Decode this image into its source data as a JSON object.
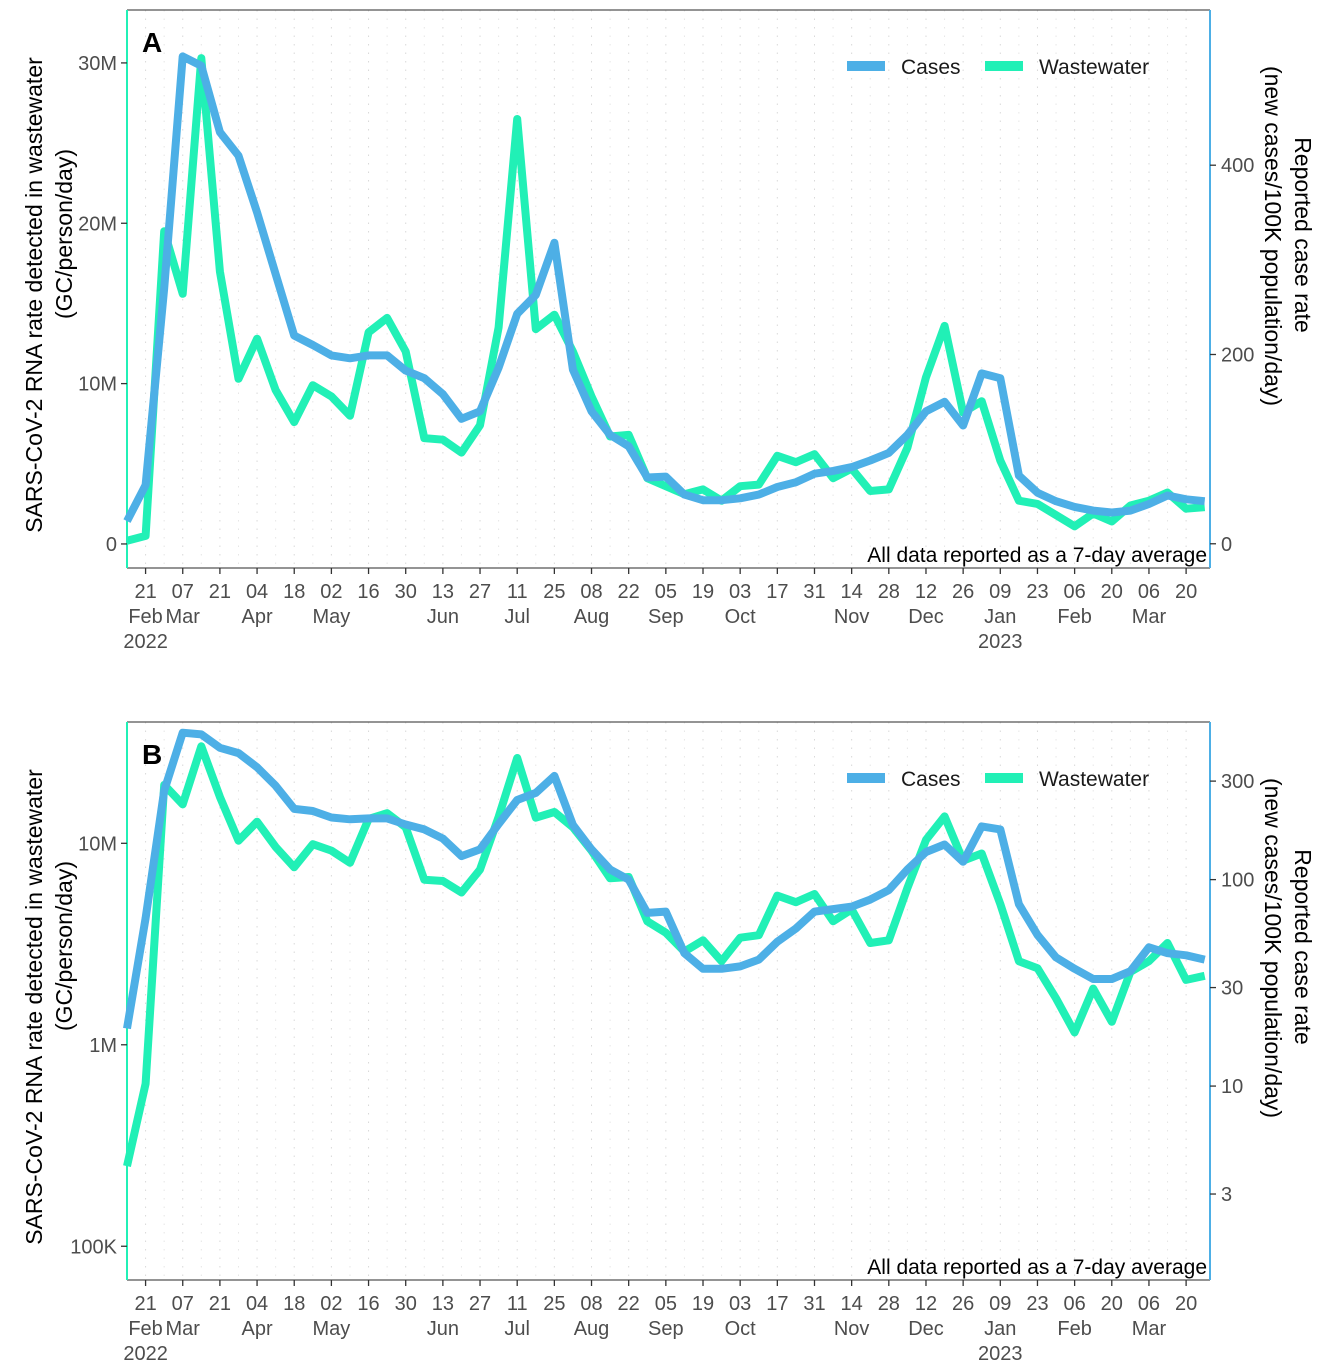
{
  "chart_data": [
    {
      "type": "line",
      "panel_label": "A",
      "scale": "linear",
      "x": [
        "2022-02-14",
        "2022-02-21",
        "2022-02-28",
        "2022-03-07",
        "2022-03-14",
        "2022-03-21",
        "2022-03-28",
        "2022-04-04",
        "2022-04-11",
        "2022-04-18",
        "2022-04-25",
        "2022-05-02",
        "2022-05-09",
        "2022-05-16",
        "2022-05-23",
        "2022-05-30",
        "2022-06-06",
        "2022-06-13",
        "2022-06-20",
        "2022-06-27",
        "2022-07-04",
        "2022-07-11",
        "2022-07-18",
        "2022-07-25",
        "2022-08-01",
        "2022-08-08",
        "2022-08-15",
        "2022-08-22",
        "2022-08-29",
        "2022-09-05",
        "2022-09-12",
        "2022-09-19",
        "2022-09-26",
        "2022-10-03",
        "2022-10-10",
        "2022-10-17",
        "2022-10-24",
        "2022-10-31",
        "2022-11-07",
        "2022-11-14",
        "2022-11-21",
        "2022-11-28",
        "2022-12-05",
        "2022-12-12",
        "2022-12-19",
        "2022-12-26",
        "2023-01-02",
        "2023-01-09",
        "2023-01-16",
        "2023-01-23",
        "2023-01-30",
        "2023-02-06",
        "2023-02-13",
        "2023-02-20",
        "2023-02-27",
        "2023-03-06",
        "2023-03-13",
        "2023-03-20",
        "2023-03-27"
      ],
      "series": [
        {
          "name": "Wastewater",
          "axis": "left",
          "color": "#21F0B6",
          "values": [
            200000,
            500000,
            19500000,
            15600000,
            30300000,
            17000000,
            10300000,
            12800000,
            9600000,
            7600000,
            9900000,
            9200000,
            8000000,
            13200000,
            14100000,
            12000000,
            6600000,
            6500000,
            5700000,
            7400000,
            13500000,
            26500000,
            13400000,
            14300000,
            12000000,
            9200000,
            6700000,
            6800000,
            4100000,
            3600000,
            3100000,
            3400000,
            2700000,
            3600000,
            3700000,
            5500000,
            5100000,
            5600000,
            4100000,
            4700000,
            3300000,
            3400000,
            6000000,
            10400000,
            13600000,
            8200000,
            8900000,
            5200000,
            2700000,
            2500000,
            1800000,
            1100000,
            1900000,
            1400000,
            2400000,
            2700000,
            3200000,
            2200000,
            2300000
          ]
        },
        {
          "name": "Cases",
          "axis": "right",
          "color": "#4DAFE6",
          "values": [
            24,
            62,
            270,
            515,
            505,
            435,
            410,
            350,
            285,
            220,
            210,
            199,
            196,
            199,
            199,
            183,
            175,
            158,
            132,
            140,
            186,
            243,
            263,
            318,
            184,
            140,
            115,
            103,
            70,
            71,
            52,
            46,
            46,
            48,
            52,
            60,
            65,
            74,
            77,
            81,
            88,
            96,
            115,
            140,
            150,
            125,
            180,
            175,
            72,
            54,
            45,
            39,
            35,
            33,
            35,
            42,
            51,
            47,
            45
          ]
        }
      ],
      "left_axis": {
        "label_line1": "SARS-CoV-2 RNA rate detected in wastewater",
        "label_line2": "(GC/person/day)",
        "ticks": [
          0,
          10000000,
          20000000,
          30000000
        ],
        "tick_labels": [
          "0",
          "10M",
          "20M",
          "30M"
        ],
        "range": [
          -1500000,
          33300000
        ],
        "color": "#21F0B6"
      },
      "right_axis": {
        "label_line1": "Reported case rate",
        "label_line2": "(new cases/100K population/day)",
        "ticks": [
          0,
          200,
          400
        ],
        "tick_labels": [
          "0",
          "200",
          "400"
        ],
        "range": [
          -25.6,
          564
        ],
        "color": "#4DAFE6"
      },
      "legend": [
        "Cases",
        "Wastewater"
      ],
      "annotation": "All data reported as a 7-day average"
    },
    {
      "type": "line",
      "panel_label": "B",
      "scale": "log",
      "x": [
        "2022-02-14",
        "2022-02-21",
        "2022-02-28",
        "2022-03-07",
        "2022-03-14",
        "2022-03-21",
        "2022-03-28",
        "2022-04-04",
        "2022-04-11",
        "2022-04-18",
        "2022-04-25",
        "2022-05-02",
        "2022-05-09",
        "2022-05-16",
        "2022-05-23",
        "2022-05-30",
        "2022-06-06",
        "2022-06-13",
        "2022-06-20",
        "2022-06-27",
        "2022-07-04",
        "2022-07-11",
        "2022-07-18",
        "2022-07-25",
        "2022-08-01",
        "2022-08-08",
        "2022-08-15",
        "2022-08-22",
        "2022-08-29",
        "2022-09-05",
        "2022-09-12",
        "2022-09-19",
        "2022-09-26",
        "2022-10-03",
        "2022-10-10",
        "2022-10-17",
        "2022-10-24",
        "2022-10-31",
        "2022-11-07",
        "2022-11-14",
        "2022-11-21",
        "2022-11-28",
        "2022-12-05",
        "2022-12-12",
        "2022-12-19",
        "2022-12-26",
        "2023-01-02",
        "2023-01-09",
        "2023-01-16",
        "2023-01-23",
        "2023-01-30",
        "2023-02-06",
        "2023-02-13",
        "2023-02-20",
        "2023-02-27",
        "2023-03-06",
        "2023-03-13",
        "2023-03-20",
        "2023-03-27"
      ],
      "series": [
        {
          "name": "Wastewater",
          "axis": "left",
          "color": "#21F0B6",
          "values": [
            250000,
            640000,
            19500000,
            15600000,
            30300000,
            17000000,
            10300000,
            12800000,
            9600000,
            7600000,
            9900000,
            9200000,
            8000000,
            13200000,
            14100000,
            12000000,
            6600000,
            6500000,
            5700000,
            7400000,
            13500000,
            26500000,
            13400000,
            14300000,
            12000000,
            9200000,
            6700000,
            6800000,
            4100000,
            3600000,
            2900000,
            3300000,
            2600000,
            3400000,
            3500000,
            5500000,
            5100000,
            5600000,
            4100000,
            4700000,
            3200000,
            3300000,
            6000000,
            10400000,
            13600000,
            8200000,
            8900000,
            5000000,
            2600000,
            2400000,
            1700000,
            1150000,
            1900000,
            1300000,
            2300000,
            2600000,
            3200000,
            2100000,
            2200000
          ]
        },
        {
          "name": "Cases",
          "axis": "right",
          "color": "#4DAFE6",
          "values": [
            19,
            65,
            270,
            515,
            505,
            435,
            410,
            350,
            285,
            220,
            215,
            200,
            196,
            198,
            198,
            185,
            175,
            158,
            130,
            140,
            186,
            243,
            263,
            318,
            184,
            140,
            112,
            100,
            69,
            70,
            44,
            37,
            37,
            38,
            41,
            50,
            58,
            70,
            72,
            74,
            80,
            89,
            112,
            136,
            148,
            122,
            181,
            175,
            76,
            54,
            42,
            37,
            33,
            33,
            36,
            47,
            44,
            43,
            41
          ]
        }
      ],
      "left_axis": {
        "label_line1": "SARS-CoV-2 RNA rate detected in wastewater",
        "label_line2": "(GC/person/day)",
        "ticks": [
          100000,
          1000000,
          10000000
        ],
        "tick_labels": [
          "100K",
          "1M",
          "10M"
        ],
        "range": [
          68000,
          40000000
        ],
        "color": "#21F0B6"
      },
      "right_axis": {
        "label_line1": "Reported case rate",
        "label_line2": "(new cases/100K population/day)",
        "ticks": [
          3,
          10,
          30,
          100,
          300
        ],
        "tick_labels": [
          "3",
          "10",
          "30",
          "100",
          "300"
        ],
        "range": [
          1.15,
          580
        ],
        "color": "#4DAFE6"
      },
      "legend": [
        "Cases",
        "Wastewater"
      ],
      "annotation": "All data reported as a 7-day average"
    }
  ],
  "x_axis": {
    "range": [
      "2022-02-14",
      "2023-03-29"
    ],
    "ticks": [
      "2022-02-21",
      "2022-03-07",
      "2022-03-21",
      "2022-04-04",
      "2022-04-18",
      "2022-05-02",
      "2022-05-16",
      "2022-05-30",
      "2022-06-13",
      "2022-06-27",
      "2022-07-11",
      "2022-07-25",
      "2022-08-08",
      "2022-08-22",
      "2022-09-05",
      "2022-09-19",
      "2022-10-03",
      "2022-10-17",
      "2022-10-31",
      "2022-11-14",
      "2022-11-28",
      "2022-12-12",
      "2022-12-26",
      "2023-01-09",
      "2023-01-23",
      "2023-02-06",
      "2023-02-20",
      "2023-03-06",
      "2023-03-20"
    ],
    "tick_labels": [
      "21",
      "07",
      "21",
      "04",
      "18",
      "02",
      "16",
      "30",
      "13",
      "27",
      "11",
      "25",
      "08",
      "22",
      "05",
      "19",
      "03",
      "17",
      "31",
      "14",
      "28",
      "12",
      "26",
      "09",
      "23",
      "06",
      "20",
      "06",
      "20"
    ],
    "month_labels": [
      {
        "date": "2022-02-21",
        "text": "Feb"
      },
      {
        "date": "2022-03-07",
        "text": "Mar"
      },
      {
        "date": "2022-04-04",
        "text": "Apr"
      },
      {
        "date": "2022-05-02",
        "text": "May"
      },
      {
        "date": "2022-06-13",
        "text": "Jun"
      },
      {
        "date": "2022-07-11",
        "text": "Jul"
      },
      {
        "date": "2022-08-08",
        "text": "Aug"
      },
      {
        "date": "2022-09-05",
        "text": "Sep"
      },
      {
        "date": "2022-10-03",
        "text": "Oct"
      },
      {
        "date": "2022-11-14",
        "text": "Nov"
      },
      {
        "date": "2022-12-12",
        "text": "Dec"
      },
      {
        "date": "2023-01-09",
        "text": "Jan"
      },
      {
        "date": "2023-02-06",
        "text": "Feb"
      },
      {
        "date": "2023-03-06",
        "text": "Mar"
      }
    ],
    "year_labels": [
      {
        "date": "2022-02-21",
        "text": "2022"
      },
      {
        "date": "2023-01-09",
        "text": "2023"
      }
    ]
  }
}
